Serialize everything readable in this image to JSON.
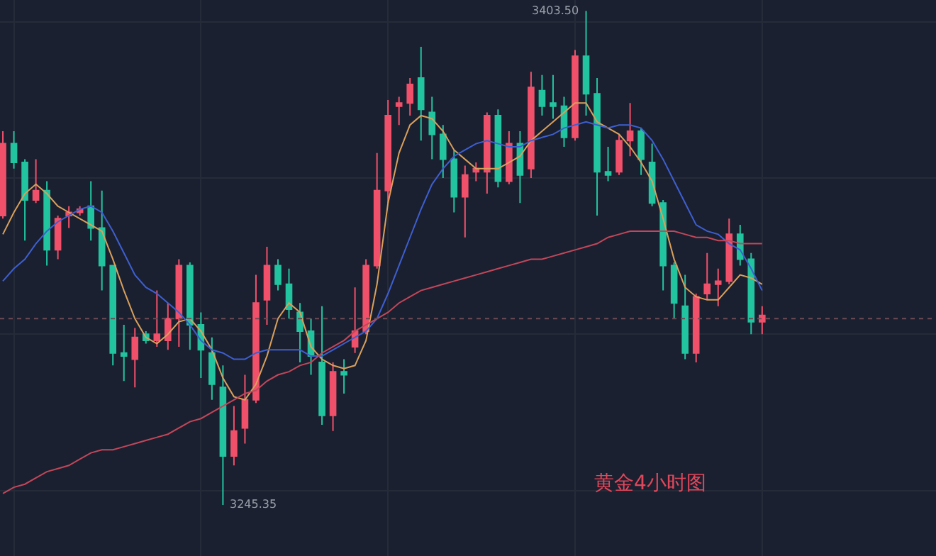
{
  "chart_data": {
    "type": "candlestick",
    "title": "黄金4小时图",
    "categories": [
      null,
      null,
      null,
      null,
      null,
      null,
      null,
      null,
      null,
      null,
      null,
      null,
      null,
      null,
      null,
      null,
      null,
      null,
      null,
      null,
      null,
      null,
      null,
      null,
      null,
      null,
      null,
      null,
      null,
      null,
      null,
      null,
      null,
      null,
      null,
      null,
      null,
      null,
      null,
      null,
      null,
      null,
      null,
      null,
      null,
      null,
      null,
      null,
      null,
      null,
      null,
      null,
      null,
      null,
      null,
      null,
      null,
      null,
      null,
      null,
      null,
      null,
      null,
      null,
      null,
      null,
      null,
      null,
      null,
      null
    ],
    "ohlc": [
      [
        3338,
        3365,
        3337,
        3361
      ],
      [
        3361,
        3365,
        3353,
        3355
      ],
      [
        3355,
        3356,
        3330,
        3343
      ],
      [
        3343,
        3356,
        3342,
        3346
      ],
      [
        3346,
        3349,
        3322,
        3327
      ],
      [
        3327,
        3338,
        3324,
        3337
      ],
      [
        3338,
        3341,
        3334,
        3339
      ],
      [
        3339,
        3341,
        3338,
        3340
      ],
      [
        3341,
        3349,
        3330,
        3334
      ],
      [
        3334,
        3346,
        3314,
        3322
      ],
      [
        3322,
        3322,
        3290,
        3294
      ],
      [
        3294,
        3303,
        3285,
        3293
      ],
      [
        3292,
        3302,
        3283,
        3299
      ],
      [
        3300,
        3301,
        3297,
        3298
      ],
      [
        3298,
        3314,
        3296,
        3300
      ],
      [
        3298,
        3310,
        3295,
        3305
      ],
      [
        3305,
        3324,
        3296,
        3322
      ],
      [
        3322,
        3323,
        3295,
        3303
      ],
      [
        3303,
        3307,
        3286,
        3295
      ],
      [
        3294,
        3299,
        3279,
        3284
      ],
      [
        3283,
        3290,
        3245.35,
        3261
      ],
      [
        3261,
        3277,
        3258,
        3269
      ],
      [
        3270,
        3287,
        3265,
        3279
      ],
      [
        3279,
        3319,
        3278,
        3310
      ],
      [
        3311,
        3328,
        3303,
        3322
      ],
      [
        3322,
        3324,
        3314,
        3316
      ],
      [
        3316,
        3321,
        3305,
        3308
      ],
      [
        3307,
        3310,
        3291,
        3301
      ],
      [
        3301,
        3305,
        3287,
        3293
      ],
      [
        3291,
        3309,
        3271,
        3274
      ],
      [
        3274,
        3291,
        3269,
        3288
      ],
      [
        3288,
        3292,
        3281,
        3287
      ],
      [
        3296,
        3315,
        3294,
        3301
      ],
      [
        3301,
        3324,
        3300,
        3322
      ],
      [
        3322,
        3358,
        3321,
        3346
      ],
      [
        3346,
        3375,
        3342,
        3370
      ],
      [
        3373,
        3376,
        3367,
        3374
      ],
      [
        3374,
        3382,
        3370,
        3380
      ],
      [
        3382,
        3392,
        3362,
        3372
      ],
      [
        3371,
        3376,
        3356,
        3364
      ],
      [
        3364,
        3367,
        3350,
        3356
      ],
      [
        3356,
        3359,
        3339,
        3344
      ],
      [
        3344,
        3354,
        3331,
        3351
      ],
      [
        3352,
        3355,
        3349,
        3353
      ],
      [
        3352,
        3371,
        3345,
        3370
      ],
      [
        3370,
        3372,
        3347,
        3349
      ],
      [
        3349,
        3365,
        3348,
        3361
      ],
      [
        3361,
        3365,
        3342,
        3351
      ],
      [
        3353,
        3384,
        3350,
        3379
      ],
      [
        3378,
        3383,
        3370,
        3373
      ],
      [
        3374,
        3383,
        3369,
        3373
      ],
      [
        3373,
        3376,
        3360,
        3363
      ],
      [
        3363,
        3391,
        3362,
        3389
      ],
      [
        3389,
        3403.5,
        3370,
        3377
      ],
      [
        3377,
        3382,
        3338,
        3352
      ],
      [
        3352,
        3360,
        3349,
        3351
      ],
      [
        3352,
        3364,
        3351,
        3362
      ],
      [
        3362,
        3374,
        3357,
        3365
      ],
      [
        3365,
        3366,
        3351,
        3356
      ],
      [
        3355,
        3361,
        3341,
        3342
      ],
      [
        3342,
        3343,
        3314,
        3322
      ],
      [
        3322,
        3323,
        3305,
        3310
      ],
      [
        3309,
        3319,
        3292,
        3294
      ],
      [
        3294,
        3313,
        3291,
        3312
      ],
      [
        3313,
        3326,
        3311,
        3316
      ],
      [
        3316,
        3321,
        3309,
        3317
      ],
      [
        3317,
        3337,
        3316,
        3332
      ],
      [
        3332,
        3335,
        3322,
        3324
      ],
      [
        3324,
        3326,
        3300,
        3304
      ],
      [
        3304,
        3309,
        3300,
        3306
      ]
    ],
    "series": [
      {
        "type": "line",
        "color": "#d9a05b",
        "values": [
          3332,
          3339,
          3345,
          3348,
          3345,
          3341,
          3339,
          3337,
          3335,
          3333,
          3324,
          3314,
          3305,
          3299,
          3297,
          3300,
          3304,
          3305,
          3301,
          3295,
          3286,
          3280,
          3279,
          3284,
          3293,
          3305,
          3310,
          3307,
          3296,
          3292,
          3290,
          3289,
          3290,
          3298,
          3316,
          3342,
          3358,
          3367,
          3370,
          3369,
          3365,
          3359,
          3356,
          3353,
          3353,
          3353,
          3355,
          3357,
          3362,
          3365,
          3368,
          3371,
          3374,
          3374,
          3368,
          3366,
          3364,
          3360,
          3355,
          3349,
          3337,
          3324,
          3315,
          3312,
          3311,
          3311,
          3315,
          3319,
          3318,
          3316
        ]
      },
      {
        "type": "line",
        "color": "#3d5fd1",
        "values": [
          3317,
          3321,
          3324,
          3329,
          3333,
          3336,
          3338,
          3340,
          3341,
          3339,
          3333,
          3326,
          3319,
          3315,
          3313,
          3310,
          3307,
          3303,
          3298,
          3295,
          3294,
          3292,
          3292,
          3294,
          3295,
          3295,
          3295,
          3295,
          3293,
          3293,
          3295,
          3297,
          3299,
          3301,
          3305,
          3313,
          3322,
          3331,
          3340,
          3348,
          3353,
          3357,
          3359,
          3361,
          3362,
          3361,
          3360,
          3360,
          3362,
          3363,
          3364,
          3366,
          3367,
          3368,
          3367,
          3366,
          3367,
          3367,
          3366,
          3362,
          3356,
          3349,
          3342,
          3335,
          3333,
          3332,
          3329,
          3327,
          3321,
          3314
        ]
      },
      {
        "type": "line",
        "color": "#c2475a",
        "values": [
          3249,
          3251,
          3252,
          3254,
          3256,
          3257,
          3258,
          3260,
          3262,
          3263,
          3263,
          3264,
          3265,
          3266,
          3267,
          3268,
          3270,
          3272,
          3273,
          3275,
          3277,
          3279,
          3281,
          3282,
          3285,
          3287,
          3288,
          3290,
          3291,
          3294,
          3296,
          3298,
          3301,
          3303,
          3305,
          3307,
          3310,
          3312,
          3314,
          3315,
          3316,
          3317,
          3318,
          3319,
          3320,
          3321,
          3322,
          3323,
          3324,
          3324,
          3325,
          3326,
          3327,
          3328,
          3329,
          3331,
          3332,
          3333,
          3333,
          3333,
          3333,
          3333,
          3332,
          3331,
          3331,
          3330,
          3330,
          3329,
          3329,
          3329
        ]
      }
    ],
    "ref_lines": [
      {
        "axis": "y",
        "value": 3305,
        "line_style": "dotted",
        "color": "#6e4a55"
      }
    ],
    "annotations": [
      "3403.50",
      "3245.35"
    ],
    "ylim": [
      3229,
      3407
    ],
    "grid": true,
    "tick_labels": false
  }
}
